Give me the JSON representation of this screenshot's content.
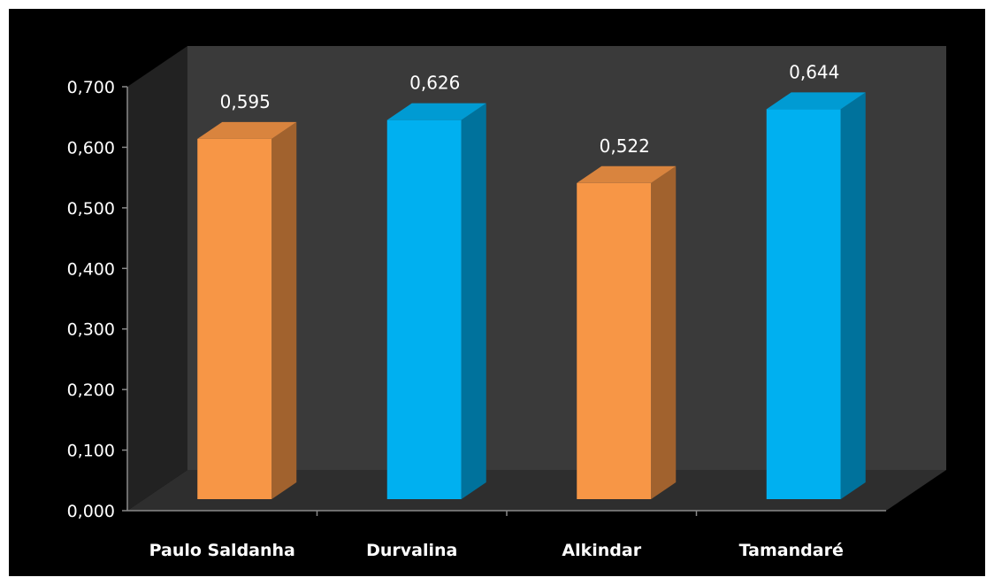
{
  "colors": {
    "background": "#000000",
    "orange": "#F79646",
    "blue": "#00B0F0",
    "wall": "#3A3A3A",
    "side_wall": "#222222",
    "floor": "#2E2E2E"
  },
  "chart_data": {
    "type": "bar",
    "categories": [
      "Paulo Saldanha",
      "Durvalina",
      "Alkindar",
      "Tamandaré"
    ],
    "series": [
      {
        "values": [
          0.595,
          0.626,
          0.522,
          0.644
        ],
        "data_labels": [
          "0,595",
          "0,626",
          "0,522",
          "0,644"
        ],
        "colors": [
          "orange",
          "blue",
          "orange",
          "blue"
        ]
      }
    ],
    "title": "",
    "xlabel": "",
    "ylabel": "",
    "ylim": [
      0,
      0.7
    ],
    "yticks": [
      {
        "value": 0.0,
        "label": "0,000"
      },
      {
        "value": 0.1,
        "label": "0,100"
      },
      {
        "value": 0.2,
        "label": "0,200"
      },
      {
        "value": 0.3,
        "label": "0,300"
      },
      {
        "value": 0.4,
        "label": "0,400"
      },
      {
        "value": 0.5,
        "label": "0,500"
      },
      {
        "value": 0.6,
        "label": "0,600"
      },
      {
        "value": 0.7,
        "label": "0,700"
      }
    ],
    "style": "3d-column",
    "grid": false,
    "legend": "none"
  }
}
